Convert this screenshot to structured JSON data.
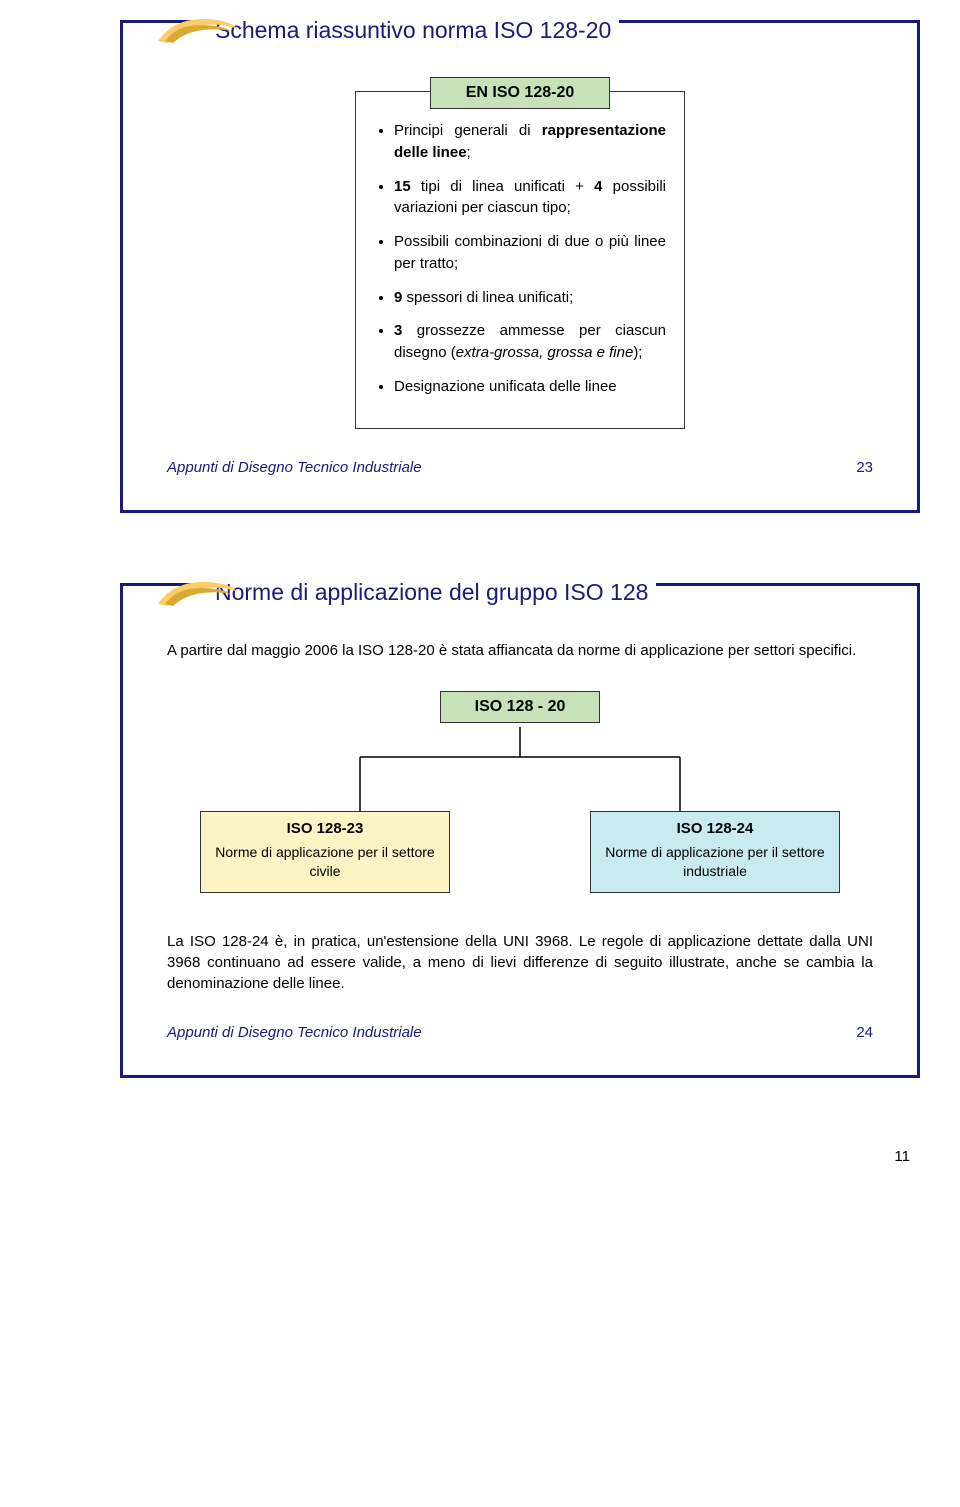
{
  "colors": {
    "frame": "#1a1a7a",
    "swoosh_outer": "#ffcc66",
    "swoosh_inner": "#d9aa33",
    "green_box_bg": "#c7e2b8",
    "yellow_box_bg": "#fdf4c5",
    "cyan_box_bg": "#c9eaf0",
    "text_blue": "#1a1a7a"
  },
  "slide1": {
    "title": "Schema riassuntivo norma ISO 128-20",
    "box_title": "EN ISO 128-20",
    "bullets": [
      "Principi generali di <b>rappresentazione delle linee</b>;",
      "<b>15</b> tipi di linea unificati + <b>4</b> possibili variazioni per ciascun tipo;",
      "Possibili combinazioni di due o più linee per tratto;",
      "<b>9</b> spessori di linea unificati;",
      "<b>3</b> grossezze ammesse per ciascun disegno (<i>extra-grossa, grossa e fine</i>);",
      "Designazione unificata delle linee"
    ],
    "footer_label": "Appunti di Disegno Tecnico Industriale",
    "footer_num": "23"
  },
  "slide2": {
    "title": "Norme di applicazione del gruppo ISO 128",
    "intro": "A partire dal maggio 2006 la ISO 128-20 è stata affiancata da norme di applicazione per settori specifici.",
    "top_box": "ISO 128 - 20",
    "left_box": {
      "title": "ISO 128-23",
      "body": "Norme di applicazione per il settore civile"
    },
    "right_box": {
      "title": "ISO 128-24",
      "body": "Norme di applicazione per il settore industriale"
    },
    "outro": "La ISO 128-24 è, in pratica, un'estensione della UNI 3968. Le regole di applicazione dettate dalla UNI 3968 continuano ad essere valide, a meno di lievi differenze di seguito illustrate, anche se cambia la denominazione delle linee.",
    "footer_label": "Appunti di Disegno Tecnico Industriale",
    "footer_num": "24"
  },
  "page_number": "11"
}
